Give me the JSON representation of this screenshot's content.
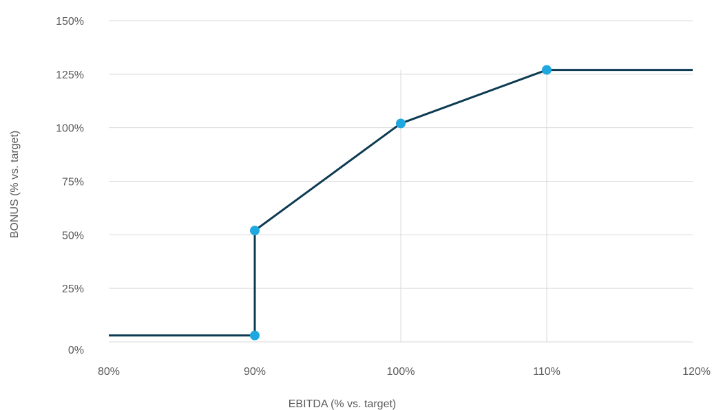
{
  "chart_data": {
    "type": "line",
    "xlabel": "EBITDA (% vs. target)",
    "ylabel": "BONUS (% vs. target)",
    "xlim": [
      80,
      120
    ],
    "ylim": [
      0,
      150
    ],
    "x_ticks": [
      "80%",
      "90%",
      "100%",
      "110%",
      "120%"
    ],
    "x_tick_values": [
      80,
      90,
      100,
      110,
      120
    ],
    "y_ticks": [
      "0%",
      "25%",
      "50%",
      "75%",
      "100%",
      "125%",
      "150%"
    ],
    "y_tick_values": [
      0,
      25,
      50,
      75,
      100,
      125,
      150
    ],
    "grid": {
      "horizontal": true,
      "vertical_at_x": [
        100,
        110
      ]
    },
    "series": [
      {
        "x": [
          80,
          90,
          90,
          100,
          110,
          120
        ],
        "y": [
          3,
          3,
          52,
          102,
          127,
          127
        ]
      }
    ],
    "markers": [
      {
        "x": 90,
        "y": 3
      },
      {
        "x": 90,
        "y": 52
      },
      {
        "x": 100,
        "y": 102
      },
      {
        "x": 110,
        "y": 127
      }
    ],
    "colors": {
      "line": "#0d3b52",
      "marker": "#1fa8e0",
      "grid": "#d9d9d9",
      "text": "#595959"
    }
  }
}
